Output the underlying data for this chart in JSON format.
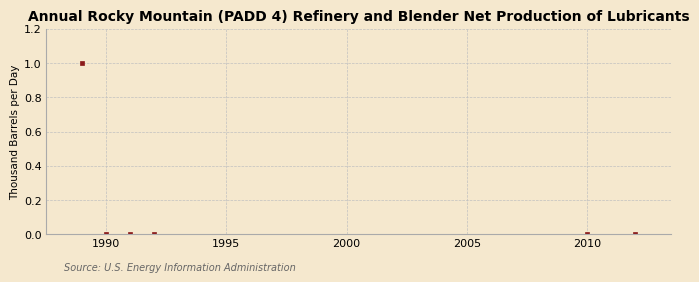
{
  "title": "Annual Rocky Mountain (PADD 4) Refinery and Blender Net Production of Lubricants",
  "ylabel": "Thousand Barrels per Day",
  "source_text": "Source: U.S. Energy Information Administration",
  "background_color": "#f5e8ce",
  "plot_bg_color": "#f5e8ce",
  "data_x": [
    1989,
    1990,
    1991,
    1992,
    2010,
    2012
  ],
  "data_y": [
    1.0,
    0.0,
    0.0,
    0.0,
    0.0,
    0.0
  ],
  "marker_color": "#8b1a1a",
  "marker_size": 3.5,
  "xlim": [
    1987.5,
    2013.5
  ],
  "ylim": [
    0.0,
    1.2
  ],
  "yticks": [
    0.0,
    0.2,
    0.4,
    0.6,
    0.8,
    1.0,
    1.2
  ],
  "xticks": [
    1990,
    1995,
    2000,
    2005,
    2010
  ],
  "grid_color": "#c0c0c0",
  "title_fontsize": 10,
  "ylabel_fontsize": 7.5,
  "tick_fontsize": 8,
  "source_fontsize": 7
}
